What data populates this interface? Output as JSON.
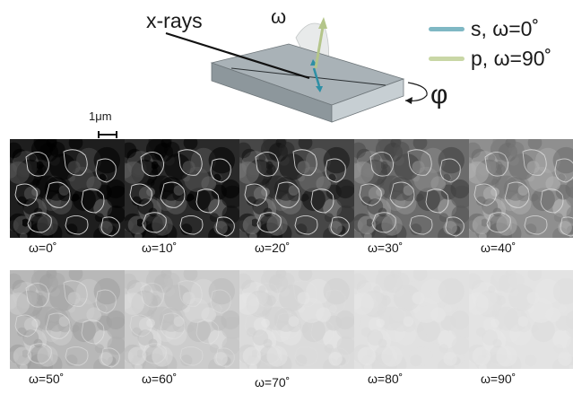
{
  "schematic": {
    "xrays_label": "x-rays",
    "omega_label": "ω",
    "phi_label": "φ"
  },
  "legend": {
    "s_label": "s, ω=0˚",
    "s_color": "#7fb8c4",
    "p_label": "p, ω=90˚",
    "p_color": "#c9d7a6"
  },
  "scale": {
    "label": "1μm"
  },
  "images": [
    {
      "omega": 0,
      "label": "ω=0˚",
      "brightness": 0.0,
      "contrast": 1.0,
      "outline_visibility": 1.0
    },
    {
      "omega": 10,
      "label": "ω=10˚",
      "brightness": 0.06,
      "contrast": 0.95,
      "outline_visibility": 1.0
    },
    {
      "omega": 20,
      "label": "ω=20˚",
      "brightness": 0.2,
      "contrast": 0.85,
      "outline_visibility": 0.95
    },
    {
      "omega": 30,
      "label": "ω=30˚",
      "brightness": 0.38,
      "contrast": 0.72,
      "outline_visibility": 0.85
    },
    {
      "omega": 40,
      "label": "ω=40˚",
      "brightness": 0.55,
      "contrast": 0.58,
      "outline_visibility": 0.75
    },
    {
      "omega": 50,
      "label": "ω=50˚",
      "brightness": 0.75,
      "contrast": 0.4,
      "outline_visibility": 0.55
    },
    {
      "omega": 60,
      "label": "ω=60˚",
      "brightness": 0.85,
      "contrast": 0.28,
      "outline_visibility": 0.35
    },
    {
      "omega": 70,
      "label": "ω=70˚",
      "brightness": 0.92,
      "contrast": 0.18,
      "outline_visibility": 0.15
    },
    {
      "omega": 80,
      "label": "ω=80˚",
      "brightness": 0.95,
      "contrast": 0.1,
      "outline_visibility": 0.05
    },
    {
      "omega": 90,
      "label": "ω=90˚",
      "brightness": 0.96,
      "contrast": 0.08,
      "outline_visibility": 0.0
    }
  ]
}
